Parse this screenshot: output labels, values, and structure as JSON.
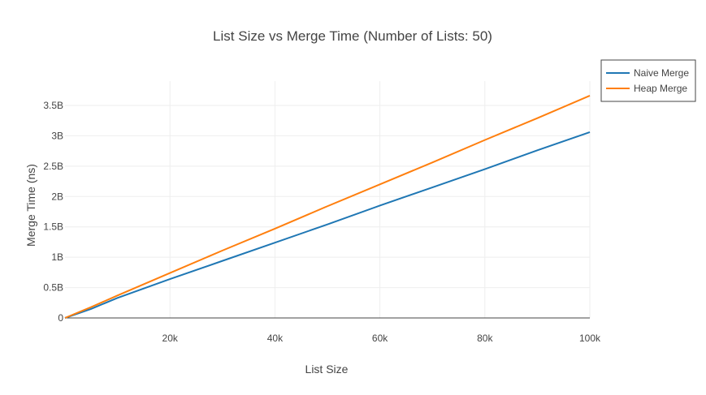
{
  "chart_data": {
    "type": "line",
    "title": "List Size vs Merge Time (Number of Lists: 50)",
    "xlabel": "List Size",
    "ylabel": "Merge Time (ns)",
    "xlim": [
      0,
      100000
    ],
    "ylim": [
      0,
      3900000000
    ],
    "xticks": [
      {
        "value": 20000,
        "label": "20k"
      },
      {
        "value": 40000,
        "label": "40k"
      },
      {
        "value": 60000,
        "label": "60k"
      },
      {
        "value": 80000,
        "label": "80k"
      },
      {
        "value": 100000,
        "label": "100k"
      }
    ],
    "yticks": [
      {
        "value": 0,
        "label": "0"
      },
      {
        "value": 500000000,
        "label": "0.5B"
      },
      {
        "value": 1000000000,
        "label": "1B"
      },
      {
        "value": 1500000000,
        "label": "1.5B"
      },
      {
        "value": 2000000000,
        "label": "2B"
      },
      {
        "value": 2500000000,
        "label": "2.5B"
      },
      {
        "value": 3000000000,
        "label": "3B"
      },
      {
        "value": 3500000000,
        "label": "3.5B"
      }
    ],
    "grid": true,
    "legend_position": "top-right",
    "series": [
      {
        "name": "Naive Merge",
        "color": "#1f77b4",
        "x": [
          0,
          5000,
          10000,
          20000,
          30000,
          40000,
          50000,
          60000,
          70000,
          80000,
          90000,
          100000
        ],
        "y": [
          0,
          150000000,
          330000000,
          640000000,
          940000000,
          1240000000,
          1540000000,
          1850000000,
          2150000000,
          2450000000,
          2760000000,
          3060000000
        ]
      },
      {
        "name": "Heap Merge",
        "color": "#ff7f0e",
        "x": [
          0,
          5000,
          10000,
          20000,
          30000,
          40000,
          50000,
          60000,
          70000,
          80000,
          90000,
          100000
        ],
        "y": [
          0,
          180000000,
          370000000,
          740000000,
          1110000000,
          1470000000,
          1840000000,
          2200000000,
          2560000000,
          2930000000,
          3290000000,
          3660000000
        ]
      }
    ]
  }
}
